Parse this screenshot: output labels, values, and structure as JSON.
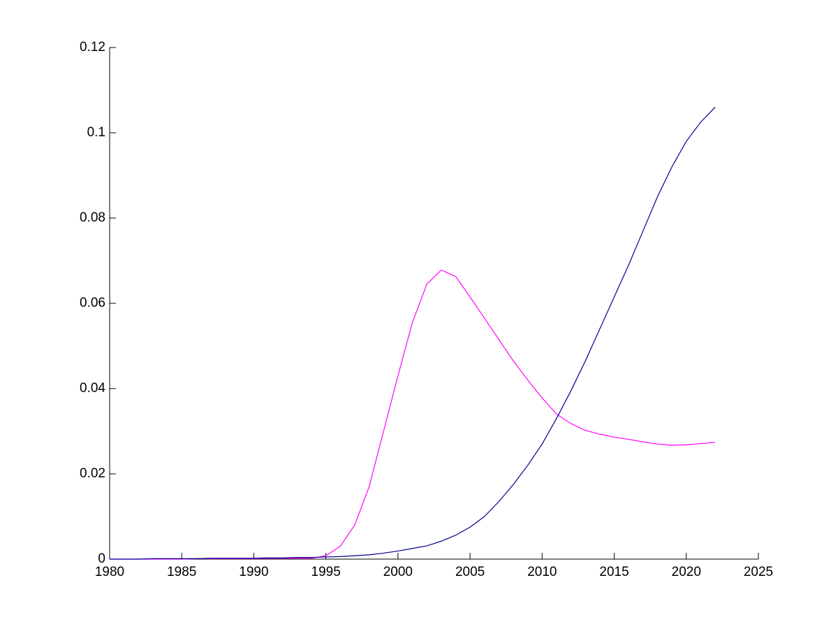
{
  "chart_data": {
    "type": "line",
    "x": [
      1980,
      1981,
      1982,
      1983,
      1984,
      1985,
      1986,
      1987,
      1988,
      1989,
      1990,
      1991,
      1992,
      1993,
      1994,
      1995,
      1996,
      1997,
      1998,
      1999,
      2000,
      2001,
      2002,
      2003,
      2004,
      2005,
      2006,
      2007,
      2008,
      2009,
      2010,
      2011,
      2012,
      2013,
      2014,
      2015,
      2016,
      2017,
      2018,
      2019,
      2020,
      2021,
      2022
    ],
    "series": [
      {
        "color": "#ff00ff",
        "values": [
          0,
          0,
          0,
          0,
          0,
          0,
          0.0001,
          0.0001,
          0.0001,
          0.0001,
          0.0001,
          0.0002,
          0.0002,
          0.0002,
          0.0002,
          0.0008,
          0.003,
          0.008,
          0.017,
          0.03,
          0.043,
          0.0555,
          0.0645,
          0.0678,
          0.0663,
          0.0615,
          0.0565,
          0.0515,
          0.0465,
          0.042,
          0.0378,
          0.034,
          0.0318,
          0.0302,
          0.0293,
          0.0286,
          0.0281,
          0.0275,
          0.027,
          0.0267,
          0.0268,
          0.0271,
          0.0274
        ]
      },
      {
        "color": "#00008b",
        "values": [
          0,
          0,
          0,
          0.0001,
          0.0001,
          0.0001,
          0.0001,
          0.0002,
          0.0002,
          0.0002,
          0.0002,
          0.0003,
          0.0003,
          0.0004,
          0.0004,
          0.0005,
          0.0006,
          0.0008,
          0.001,
          0.0014,
          0.0019,
          0.0025,
          0.0031,
          0.0042,
          0.0056,
          0.0075,
          0.01,
          0.0135,
          0.0175,
          0.022,
          0.027,
          0.033,
          0.0395,
          0.0465,
          0.054,
          0.0615,
          0.069,
          0.077,
          0.085,
          0.092,
          0.098,
          0.1025,
          0.106
        ]
      }
    ],
    "xlim": [
      1980,
      2025
    ],
    "xticks": [
      1980,
      1985,
      1990,
      1995,
      2000,
      2005,
      2010,
      2015,
      2020,
      2025
    ],
    "ylim": [
      0,
      0.12
    ],
    "yticks": [
      0,
      0.02,
      0.04,
      0.06,
      0.08,
      0.1,
      0.12
    ]
  }
}
